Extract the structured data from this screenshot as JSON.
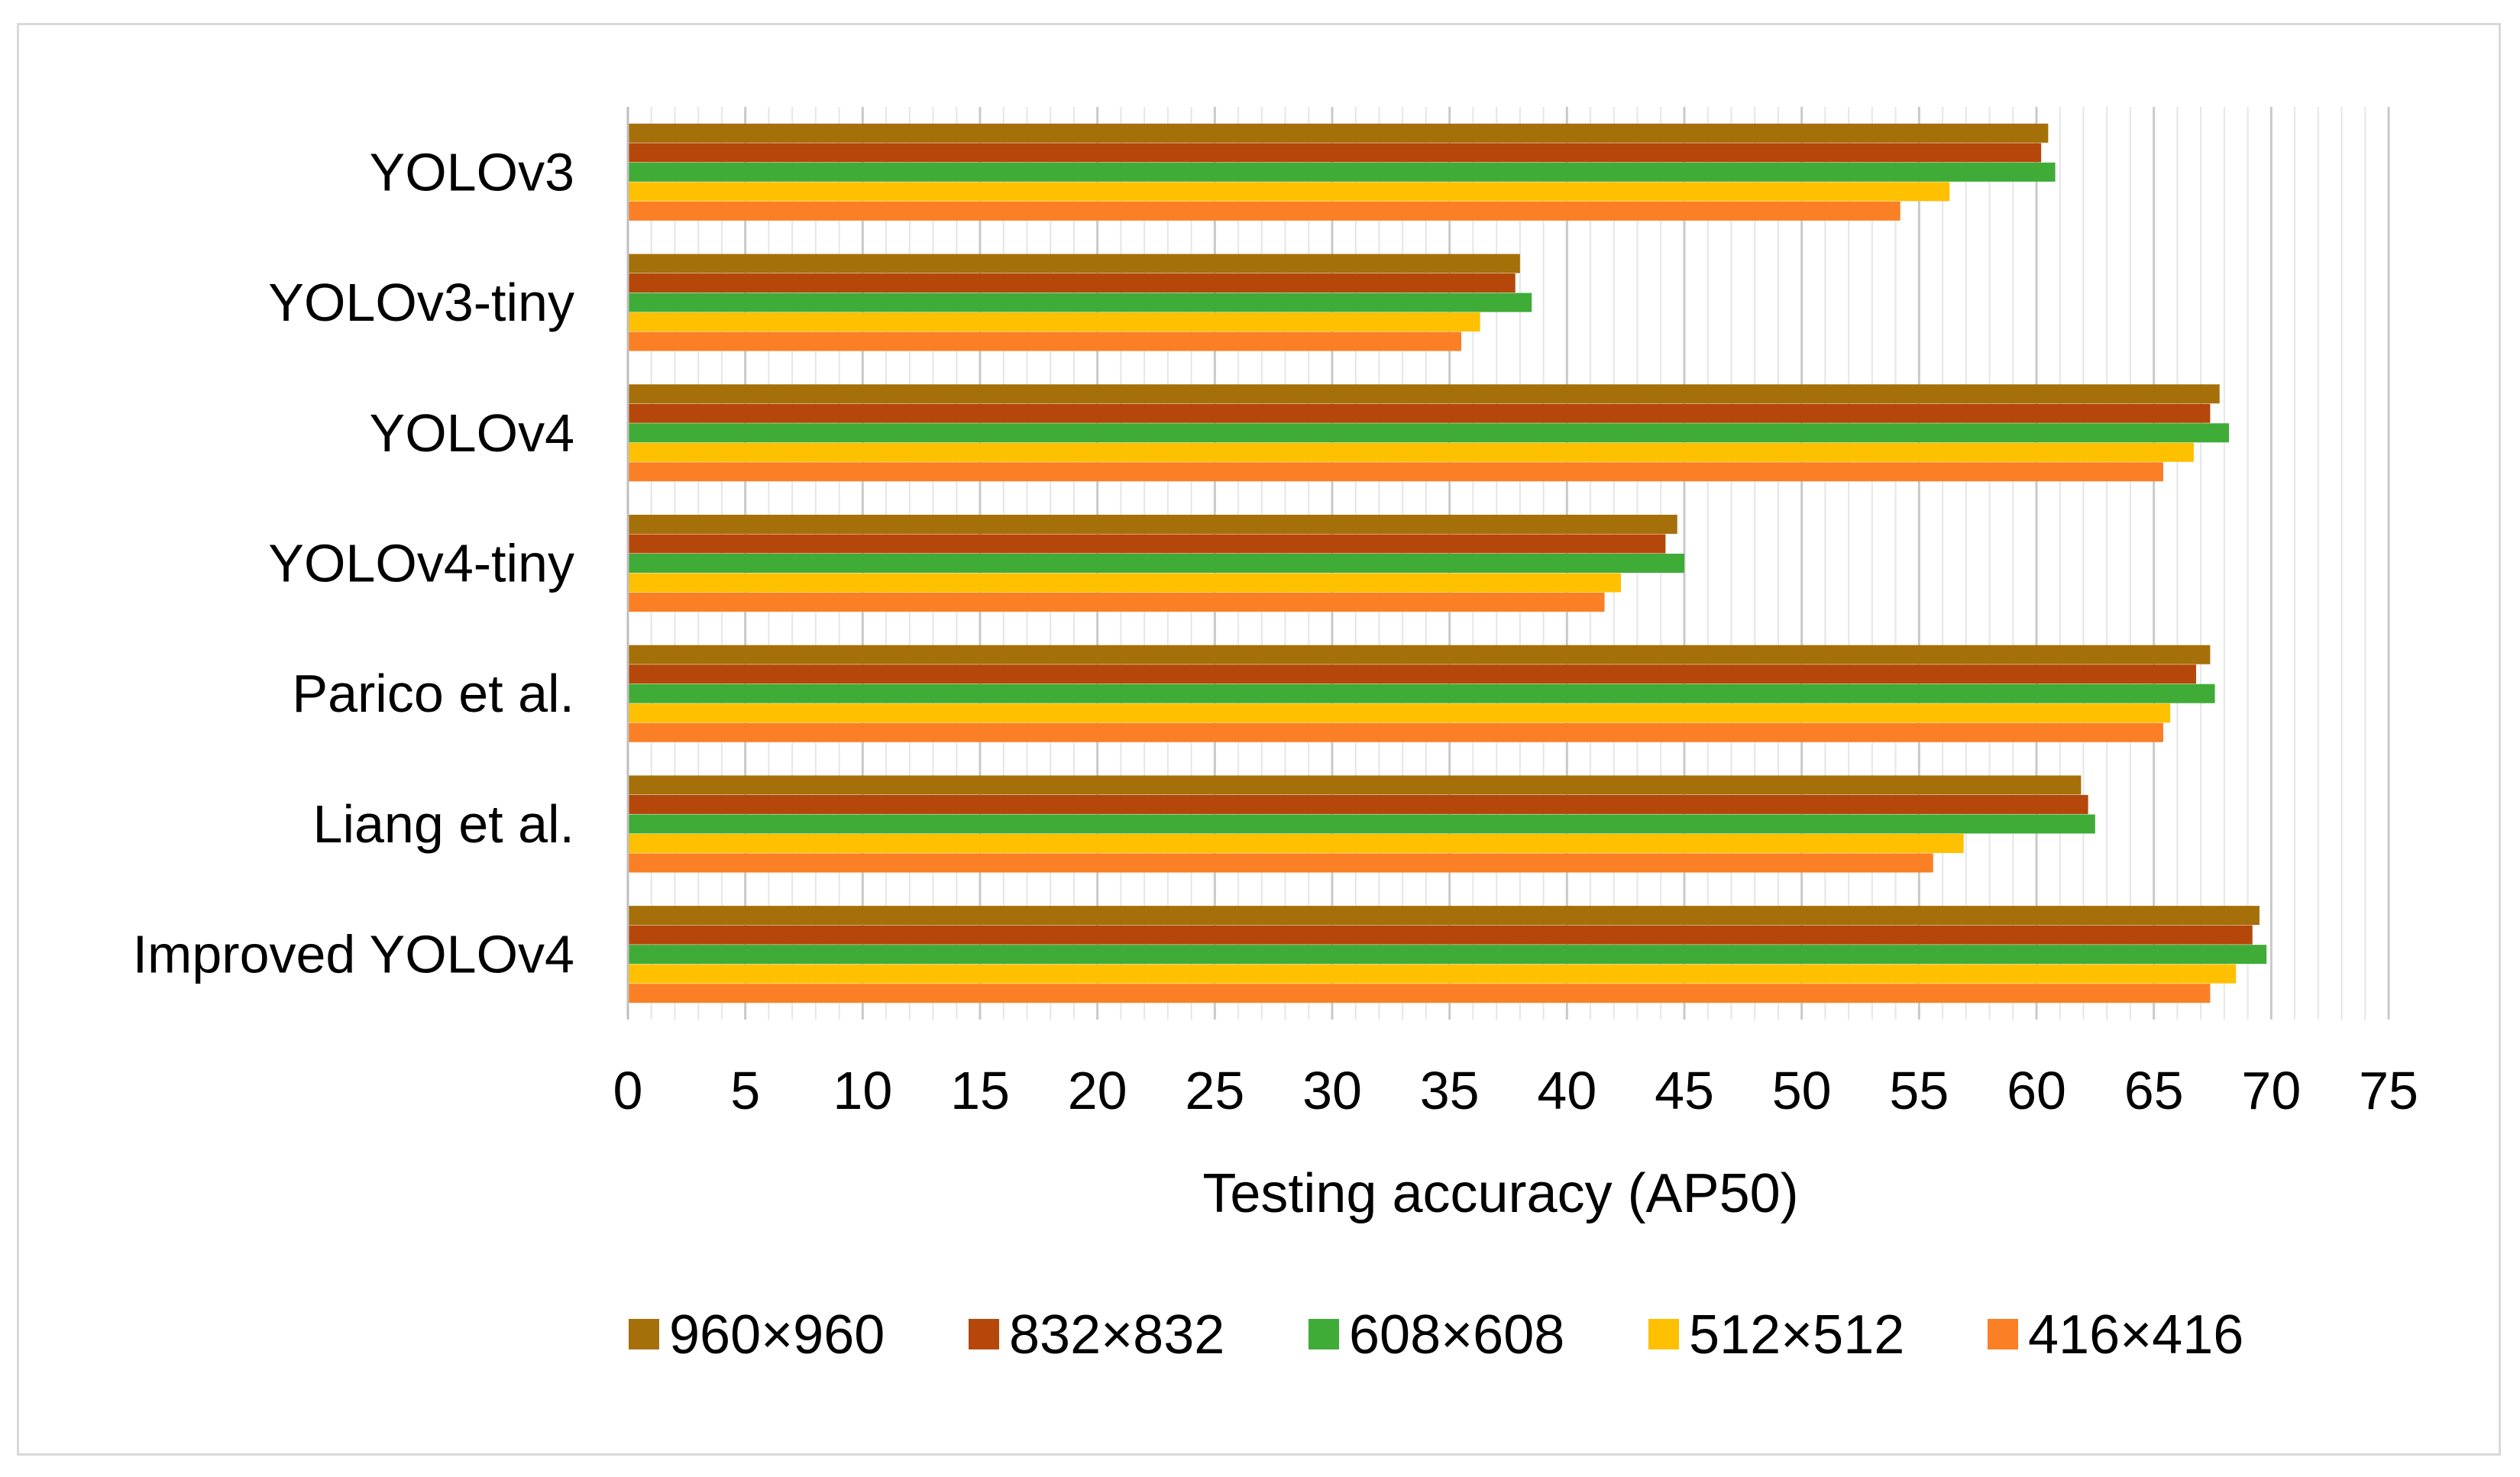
{
  "chart_data": {
    "type": "bar",
    "orientation": "horizontal",
    "categories": [
      "YOLOv3",
      "YOLOv3-tiny",
      "YOLOv4",
      "YOLOv4-tiny",
      "Parico et al.",
      "Liang et al.",
      "Improved YOLOv4"
    ],
    "series": [
      {
        "name": "960×960",
        "color": "#a5700a",
        "values": [
          60.5,
          38.0,
          67.8,
          44.7,
          67.4,
          61.9,
          69.5
        ]
      },
      {
        "name": "832×832",
        "color": "#b5470a",
        "values": [
          60.2,
          37.8,
          67.4,
          44.2,
          66.8,
          62.2,
          69.2
        ]
      },
      {
        "name": "608×608",
        "color": "#3fac38",
        "values": [
          60.8,
          38.5,
          68.2,
          45.0,
          67.6,
          62.5,
          69.8
        ]
      },
      {
        "name": "512×512",
        "color": "#ffc000",
        "values": [
          56.3,
          36.3,
          66.7,
          42.3,
          65.7,
          56.9,
          68.5
        ]
      },
      {
        "name": "416×416",
        "color": "#fb7f25",
        "values": [
          54.2,
          35.5,
          65.4,
          41.6,
          65.4,
          55.6,
          67.4
        ]
      }
    ],
    "xlabel": "Testing accuracy (AP50)",
    "xlim": [
      0,
      75
    ],
    "xticks": [
      "0",
      "5",
      "10",
      "15",
      "20",
      "25",
      "30",
      "35",
      "40",
      "45",
      "50",
      "55",
      "60",
      "65",
      "70",
      "75"
    ],
    "grid": "vertical",
    "legend": "bottom"
  }
}
